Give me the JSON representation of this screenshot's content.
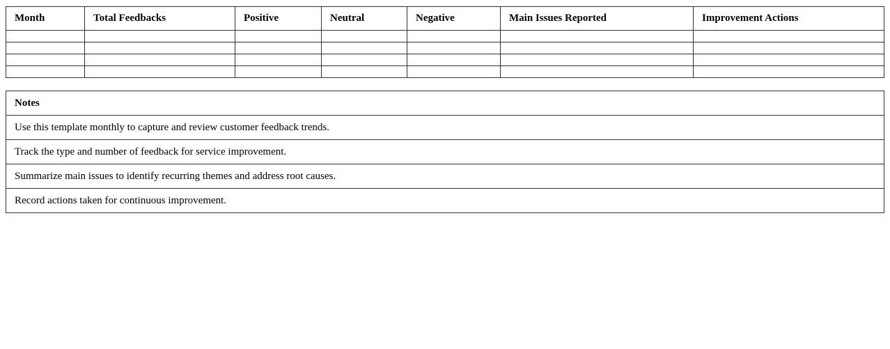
{
  "feedback_table": {
    "columns": [
      "Month",
      "Total Feedbacks",
      "Positive",
      "Neutral",
      "Negative",
      "Main Issues Reported",
      "Improvement Actions"
    ],
    "rows": [
      [
        "",
        "",
        "",
        "",
        "",
        "",
        ""
      ],
      [
        "",
        "",
        "",
        "",
        "",
        "",
        ""
      ],
      [
        "",
        "",
        "",
        "",
        "",
        "",
        ""
      ],
      [
        "",
        "",
        "",
        "",
        "",
        "",
        ""
      ]
    ]
  },
  "notes_table": {
    "header": "Notes",
    "items": [
      "Use this template monthly to capture and review customer feedback trends.",
      "Track the type and number of feedback for service improvement.",
      "Summarize main issues to identify recurring themes and address root causes.",
      "Record actions taken for continuous improvement."
    ]
  }
}
